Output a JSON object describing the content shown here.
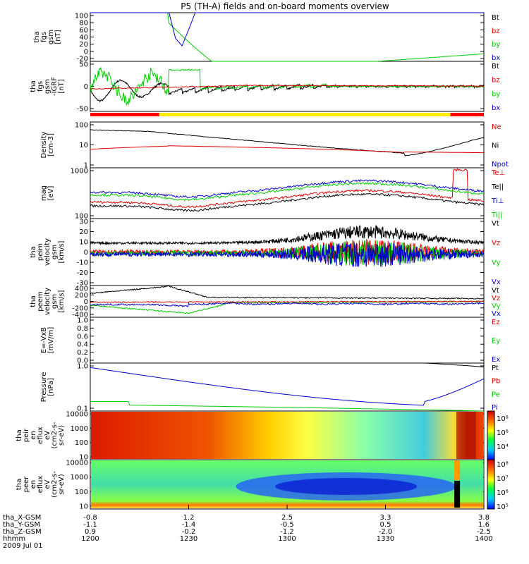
{
  "title": "P5 (TH-A) fields and on-board moments overview",
  "colors": {
    "black": "#000000",
    "red": "#dd0000",
    "green": "#00cc00",
    "blue": "#0000cc",
    "yellow": "#ffee00"
  },
  "chart_data": {
    "type": "line",
    "panels": [
      {
        "id": "fgs1",
        "ylabel": [
          "tha",
          "fgs",
          "gsm",
          "[nT]"
        ],
        "yticks": [
          "100",
          "80",
          "60",
          "40",
          "20",
          "0",
          "-20"
        ],
        "ylim": [
          -30,
          100
        ],
        "legend": [
          {
            "name": "Bt",
            "color": "#000000"
          },
          {
            "name": "bz",
            "color": "#dd0000"
          },
          {
            "name": "by",
            "color": "#00cc00"
          },
          {
            "name": "bx",
            "color": "#0000cc"
          }
        ]
      },
      {
        "id": "fgs2",
        "ylabel": [
          "tha",
          "fgs",
          "gsm",
          "-IGRF",
          "[nT]"
        ],
        "yticks": [
          "50",
          "0",
          "-50"
        ],
        "ylim": [
          -80,
          80
        ],
        "legend": [
          {
            "name": "Bt",
            "color": "#000000"
          },
          {
            "name": "bz",
            "color": "#dd0000"
          },
          {
            "name": "by",
            "color": "#00cc00"
          },
          {
            "name": "bx",
            "color": "#0000cc"
          }
        ]
      },
      {
        "id": "density",
        "ylabel": [
          "Density",
          "[cm-3]"
        ],
        "yticks": [
          "100",
          "10",
          "1"
        ],
        "log": true,
        "legend": [
          {
            "name": "Ne",
            "color": "#dd0000"
          },
          {
            "name": "Ni",
            "color": "#000000"
          },
          {
            "name": "Npot",
            "color": "#0000cc"
          }
        ]
      },
      {
        "id": "temp",
        "ylabel": [
          "mag",
          "[eV]"
        ],
        "yticks": [
          "1000",
          "100"
        ],
        "log": true,
        "legend": [
          {
            "name": "Te⊥",
            "color": "#dd0000"
          },
          {
            "name": "Te||",
            "color": "#000000"
          },
          {
            "name": "Ti⊥",
            "color": "#0000cc"
          },
          {
            "name": "Ti||",
            "color": "#00cc00"
          }
        ]
      },
      {
        "id": "peimvel",
        "ylabel": [
          "tha",
          "peim",
          "velocity",
          "gsm",
          "[km/s]"
        ],
        "yticks": [
          "30",
          "20",
          "10",
          "0",
          "-10",
          "-20",
          "-30"
        ],
        "ylim": [
          -30,
          30
        ],
        "legend": [
          {
            "name": "Vt",
            "color": "#000000"
          },
          {
            "name": "Vz",
            "color": "#dd0000"
          },
          {
            "name": "Vy",
            "color": "#00cc00"
          },
          {
            "name": "Vx",
            "color": "#0000cc"
          }
        ]
      },
      {
        "id": "peemvel",
        "ylabel": [
          "tha",
          "peem",
          "velocity",
          "gsm",
          "[km/s]"
        ],
        "yticks": [
          "400",
          "200",
          "0",
          "-200",
          "-400"
        ],
        "ylim": [
          -400,
          400
        ],
        "legend": [
          {
            "name": "Vt",
            "color": "#000000"
          },
          {
            "name": "Vz",
            "color": "#dd0000"
          },
          {
            "name": "Vy",
            "color": "#00cc00"
          },
          {
            "name": "Vx",
            "color": "#0000cc"
          }
        ]
      },
      {
        "id": "efield",
        "ylabel": [
          "E=-VxB",
          "[mV/m]"
        ],
        "yticks": [
          "1.0",
          "0.8",
          "0.6",
          "0.4",
          "0.2",
          "0.0"
        ],
        "ylim": [
          0,
          1
        ],
        "legend": [
          {
            "name": "Ez",
            "color": "#dd0000"
          },
          {
            "name": "Ey",
            "color": "#00cc00"
          },
          {
            "name": "Ex",
            "color": "#0000cc"
          }
        ]
      },
      {
        "id": "pressure",
        "ylabel": [
          "Pressure",
          "[nPa]"
        ],
        "yticks": [
          "1.0",
          "0.1"
        ],
        "log": true,
        "legend": [
          {
            "name": "Pt",
            "color": "#000000"
          },
          {
            "name": "Pb",
            "color": "#dd0000"
          },
          {
            "name": "Pe",
            "color": "#00cc00"
          },
          {
            "name": "Pi",
            "color": "#0000cc"
          }
        ]
      },
      {
        "id": "peir",
        "ylabel": [
          "tha",
          "peir",
          "en",
          "eflux",
          "eV",
          "(cm2-s-",
          "sr-eV)"
        ],
        "yticks": [
          "10000",
          "1000",
          "100",
          "10"
        ],
        "colorbar": [
          "10⁸",
          "10⁶",
          "10⁴"
        ]
      },
      {
        "id": "peer",
        "ylabel": [
          "tha",
          "peer",
          "en",
          "eflux",
          "eV",
          "(cm2-s-",
          "sr-eV)"
        ],
        "yticks": [
          "10000",
          "1000",
          "100",
          "10"
        ],
        "colorbar": [
          "10⁸",
          "10⁷",
          "10⁶",
          "10⁵"
        ]
      }
    ],
    "x_axis": {
      "rows": [
        {
          "label": "tha_X-GSM",
          "values": [
            "-0.8",
            "1.2",
            "2.5",
            "3.3",
            "3.8"
          ]
        },
        {
          "label": "tha_Y-GSM",
          "values": [
            "-1.1",
            "-1.4",
            "-0.5",
            "0.5",
            "1.6"
          ]
        },
        {
          "label": "tha_Z-GSM",
          "values": [
            "0.9",
            "-0.2",
            "-1.2",
            "-2.0",
            "-2.5"
          ]
        },
        {
          "label": "hhmm",
          "values": [
            "1200",
            "1230",
            "1300",
            "1330",
            "1400"
          ]
        }
      ],
      "date": "2009 Jul 01"
    }
  }
}
